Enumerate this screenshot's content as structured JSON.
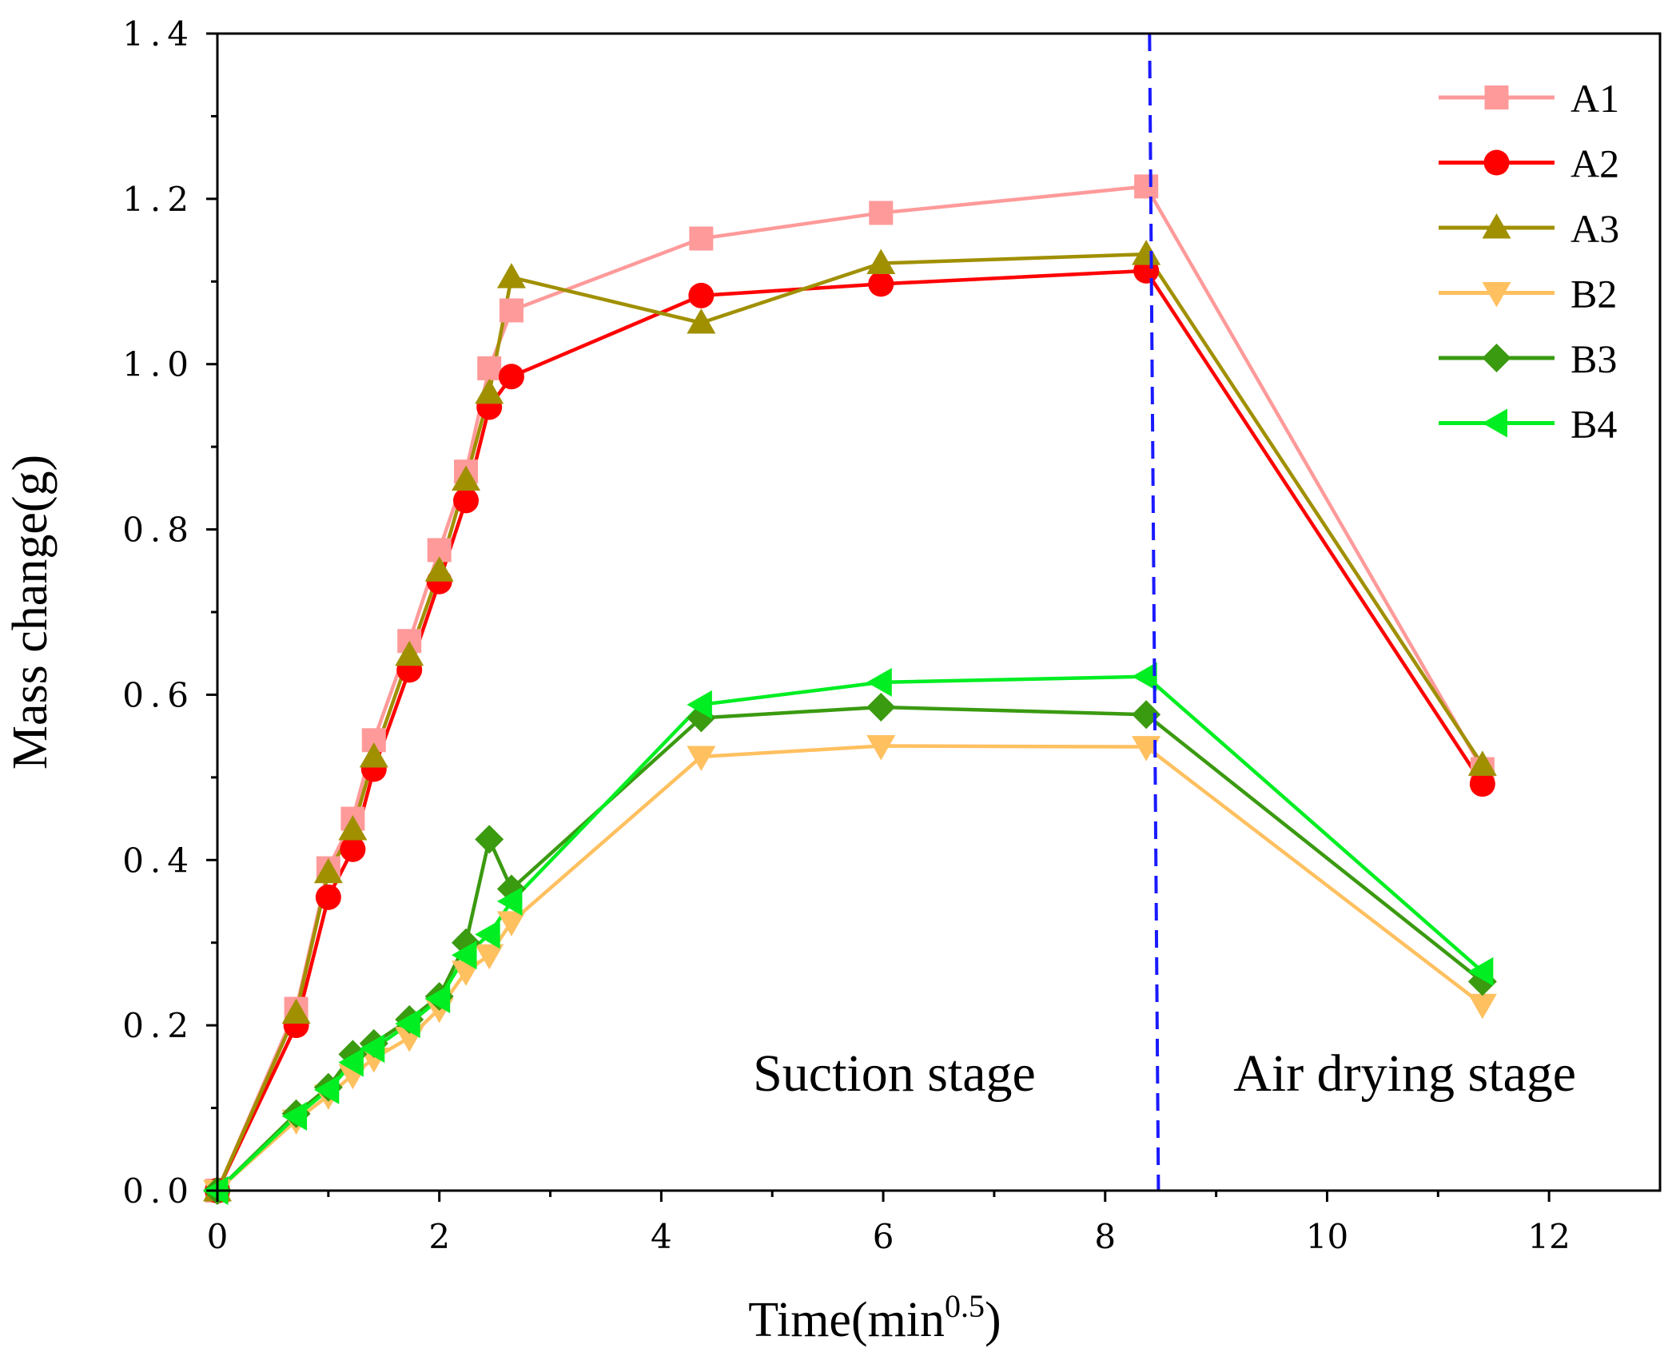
{
  "chart_data": {
    "type": "line",
    "title": "",
    "xlabel": "Time(min",
    "xlabel_sup": "0.5",
    "xlabel_end": ")",
    "ylabel": "Mass change(g)",
    "xlim": [
      0,
      13
    ],
    "ylim": [
      0,
      1.4
    ],
    "xticks": [
      0,
      2,
      4,
      6,
      8,
      10,
      12
    ],
    "xtick_labels": [
      "0",
      "2",
      "4",
      "6",
      "8",
      "10",
      "12"
    ],
    "yticks": [
      0,
      0.2,
      0.4,
      0.6,
      0.8,
      1.0,
      1.2,
      1.4
    ],
    "ytick_labels": [
      "0.0",
      "0.2",
      "0.4",
      "0.6",
      "0.8",
      "1.0",
      "1.2",
      "1.4"
    ],
    "grid": false,
    "legend_position": "top-right",
    "annotations": [
      {
        "text": "Suction stage",
        "x": 6.1,
        "y": 0.14
      },
      {
        "text": "Air drying stage",
        "x": 10.7,
        "y": 0.14
      }
    ],
    "vline": {
      "x_top": 8.4,
      "x_bottom": 8.48,
      "color": "#1a1aff",
      "style": "dashed"
    },
    "series": [
      {
        "name": "A1",
        "color": "#ff9a9a",
        "marker": "square",
        "x": [
          0,
          0.71,
          1.0,
          1.22,
          1.41,
          1.73,
          2.0,
          2.24,
          2.45,
          2.65,
          4.36,
          5.98,
          8.37,
          11.4
        ],
        "y": [
          0,
          0.22,
          0.39,
          0.45,
          0.545,
          0.665,
          0.775,
          0.87,
          0.995,
          1.065,
          1.152,
          1.183,
          1.215,
          0.51
        ]
      },
      {
        "name": "A2",
        "color": "#ff0000",
        "marker": "circle",
        "x": [
          0,
          0.71,
          1.0,
          1.22,
          1.41,
          1.73,
          2.0,
          2.24,
          2.45,
          2.65,
          4.36,
          5.98,
          8.37,
          11.4
        ],
        "y": [
          0,
          0.2,
          0.355,
          0.413,
          0.51,
          0.63,
          0.737,
          0.835,
          0.948,
          0.985,
          1.083,
          1.097,
          1.113,
          0.492
        ]
      },
      {
        "name": "A3",
        "color": "#a09000",
        "marker": "triangle-up",
        "x": [
          0,
          0.71,
          1.0,
          1.22,
          1.41,
          1.73,
          2.0,
          2.24,
          2.45,
          2.65,
          4.36,
          5.98,
          8.37,
          11.4
        ],
        "y": [
          0,
          0.215,
          0.385,
          0.437,
          0.525,
          0.648,
          0.75,
          0.86,
          0.965,
          1.105,
          1.05,
          1.122,
          1.133,
          0.515
        ]
      },
      {
        "name": "B2",
        "color": "#ffc060",
        "marker": "triangle-down",
        "x": [
          0,
          0.71,
          1.0,
          1.22,
          1.41,
          1.73,
          2.0,
          2.24,
          2.45,
          2.65,
          4.36,
          5.98,
          8.37,
          11.4
        ],
        "y": [
          0,
          0.085,
          0.115,
          0.14,
          0.16,
          0.185,
          0.22,
          0.265,
          0.285,
          0.325,
          0.525,
          0.538,
          0.537,
          0.225
        ]
      },
      {
        "name": "B3",
        "color": "#3a9a10",
        "marker": "diamond",
        "x": [
          0,
          0.71,
          1.0,
          1.22,
          1.41,
          1.73,
          2.0,
          2.24,
          2.45,
          2.65,
          4.36,
          5.98,
          8.37,
          11.4
        ],
        "y": [
          0,
          0.093,
          0.125,
          0.165,
          0.178,
          0.207,
          0.235,
          0.3,
          0.425,
          0.365,
          0.572,
          0.585,
          0.576,
          0.253
        ]
      },
      {
        "name": "B4",
        "color": "#00ee22",
        "marker": "triangle-left",
        "x": [
          0,
          0.71,
          1.0,
          1.22,
          1.41,
          1.73,
          2.0,
          2.24,
          2.45,
          2.65,
          4.36,
          5.98,
          8.37,
          11.4
        ],
        "y": [
          0,
          0.09,
          0.122,
          0.155,
          0.172,
          0.202,
          0.232,
          0.285,
          0.31,
          0.35,
          0.588,
          0.615,
          0.622,
          0.265
        ]
      }
    ]
  }
}
